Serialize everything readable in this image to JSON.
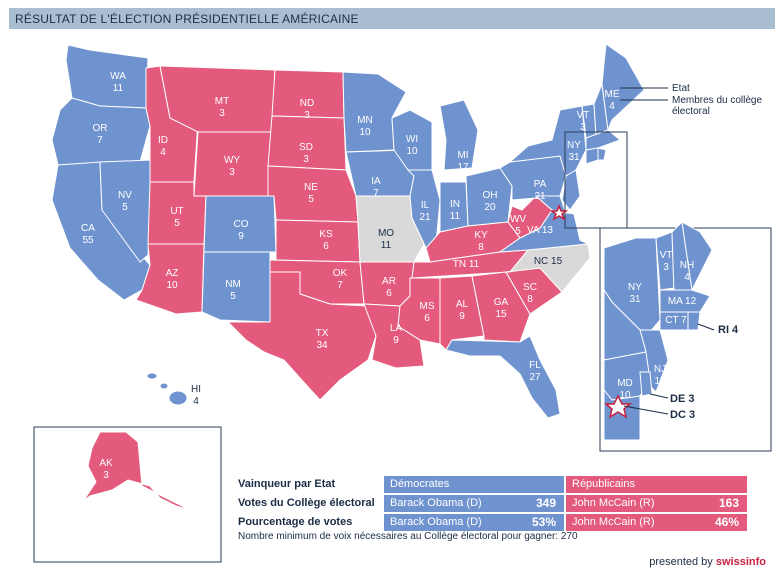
{
  "title": "RÉSULTAT DE L'ÉLECTION PRÉSIDENTIELLE AMÉRICAINE",
  "colors": {
    "democrat": "#6f93cf",
    "republican": "#e35a7c",
    "undecided": "#d9d9d9",
    "border": "#ffffff"
  },
  "legend": {
    "state_label": "Etat",
    "electors_label": "Membres du collège",
    "electors_label2": "électoral"
  },
  "states": [
    {
      "abbr": "WA",
      "votes": "11",
      "party": "D"
    },
    {
      "abbr": "OR",
      "votes": "7",
      "party": "D"
    },
    {
      "abbr": "CA",
      "votes": "55",
      "party": "D"
    },
    {
      "abbr": "NV",
      "votes": "5",
      "party": "D"
    },
    {
      "abbr": "ID",
      "votes": "4",
      "party": "R"
    },
    {
      "abbr": "MT",
      "votes": "3",
      "party": "R"
    },
    {
      "abbr": "WY",
      "votes": "3",
      "party": "R"
    },
    {
      "abbr": "UT",
      "votes": "5",
      "party": "R"
    },
    {
      "abbr": "AZ",
      "votes": "10",
      "party": "R"
    },
    {
      "abbr": "CO",
      "votes": "9",
      "party": "D"
    },
    {
      "abbr": "NM",
      "votes": "5",
      "party": "D"
    },
    {
      "abbr": "ND",
      "votes": "3",
      "party": "R"
    },
    {
      "abbr": "SD",
      "votes": "3",
      "party": "R"
    },
    {
      "abbr": "NE",
      "votes": "5",
      "party": "R"
    },
    {
      "abbr": "KS",
      "votes": "6",
      "party": "R"
    },
    {
      "abbr": "OK",
      "votes": "7",
      "party": "R"
    },
    {
      "abbr": "TX",
      "votes": "34",
      "party": "R"
    },
    {
      "abbr": "MN",
      "votes": "10",
      "party": "D"
    },
    {
      "abbr": "IA",
      "votes": "7",
      "party": "D"
    },
    {
      "abbr": "MO",
      "votes": "11",
      "party": "U"
    },
    {
      "abbr": "AR",
      "votes": "6",
      "party": "R"
    },
    {
      "abbr": "LA",
      "votes": "9",
      "party": "R"
    },
    {
      "abbr": "WI",
      "votes": "10",
      "party": "D"
    },
    {
      "abbr": "IL",
      "votes": "21",
      "party": "D"
    },
    {
      "abbr": "MI",
      "votes": "17",
      "party": "D"
    },
    {
      "abbr": "IN",
      "votes": "11",
      "party": "D"
    },
    {
      "abbr": "OH",
      "votes": "20",
      "party": "D"
    },
    {
      "abbr": "KY",
      "votes": "8",
      "party": "R"
    },
    {
      "abbr": "TN",
      "votes": "11",
      "party": "R"
    },
    {
      "abbr": "MS",
      "votes": "6",
      "party": "R"
    },
    {
      "abbr": "AL",
      "votes": "9",
      "party": "R"
    },
    {
      "abbr": "GA",
      "votes": "15",
      "party": "R"
    },
    {
      "abbr": "FL",
      "votes": "27",
      "party": "D"
    },
    {
      "abbr": "SC",
      "votes": "8",
      "party": "R"
    },
    {
      "abbr": "NC",
      "votes": "15",
      "party": "U"
    },
    {
      "abbr": "VA",
      "votes": "13",
      "party": "D"
    },
    {
      "abbr": "WV",
      "votes": "5",
      "party": "R"
    },
    {
      "abbr": "PA",
      "votes": "21",
      "party": "D"
    },
    {
      "abbr": "NY",
      "votes": "31",
      "party": "D"
    },
    {
      "abbr": "VT",
      "votes": "3",
      "party": "D"
    },
    {
      "abbr": "NH",
      "votes": "4",
      "party": "D"
    },
    {
      "abbr": "ME",
      "votes": "4",
      "party": "D"
    },
    {
      "abbr": "MA",
      "votes": "12",
      "party": "D"
    },
    {
      "abbr": "CT",
      "votes": "7",
      "party": "D"
    },
    {
      "abbr": "RI",
      "votes": "4",
      "party": "D"
    },
    {
      "abbr": "NJ",
      "votes": "15",
      "party": "D"
    },
    {
      "abbr": "DE",
      "votes": "3",
      "party": "D"
    },
    {
      "abbr": "MD",
      "votes": "10",
      "party": "D"
    },
    {
      "abbr": "DC",
      "votes": "3",
      "party": "D"
    },
    {
      "abbr": "HI",
      "votes": "4",
      "party": "D"
    },
    {
      "abbr": "AK",
      "votes": "3",
      "party": "R"
    }
  ],
  "results": {
    "rows": [
      {
        "label": "Vainqueur par Etat",
        "dem": "Démocrates",
        "dem_num": "",
        "rep": "Républicains",
        "rep_num": ""
      },
      {
        "label": "Votes du Collège électoral",
        "dem": "Barack Obama (D)",
        "dem_num": "349",
        "rep": "John McCain (R)",
        "rep_num": "163"
      },
      {
        "label": "Pourcentage de votes",
        "dem": "Barack Obama (D)",
        "dem_num": "53%",
        "rep": "John McCain (R)",
        "rep_num": "46%"
      }
    ],
    "min_votes": "Nombre minimum de voix nécessaires au Collège électoral pour gagner: 270"
  },
  "footer": {
    "presented_by": "presented by",
    "brand": "swissinfo"
  }
}
